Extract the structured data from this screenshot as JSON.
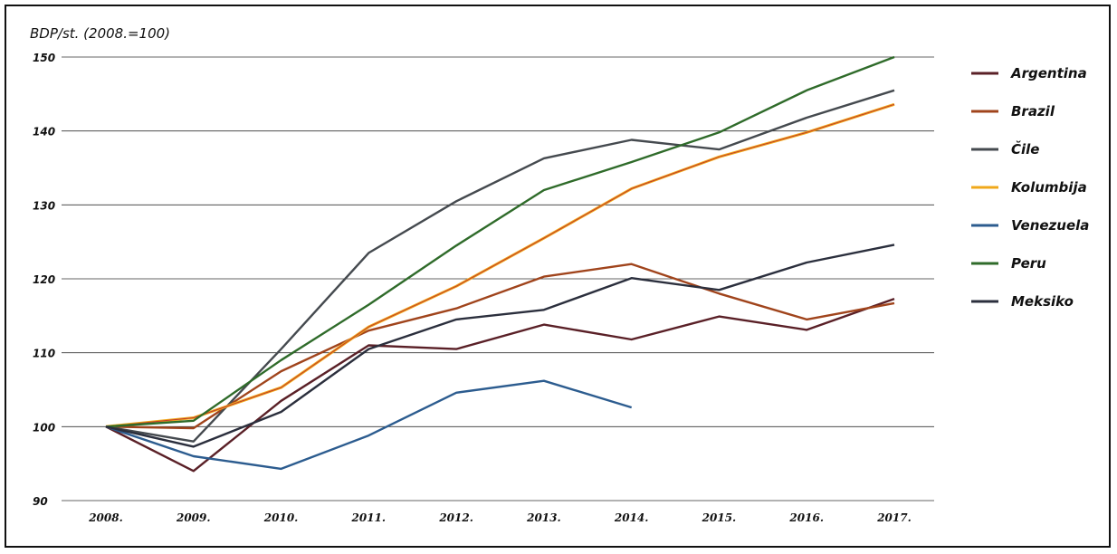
{
  "chart_data": {
    "type": "line",
    "ylabel": "BDP/st.  (2008.=100)",
    "ylim": [
      90,
      150
    ],
    "yticks": [
      "90",
      "100",
      "110",
      "120",
      "130",
      "140",
      "150"
    ],
    "x": [
      "2008.",
      "2009.",
      "2010.",
      "2011.",
      "2012.",
      "2013.",
      "2014.",
      "2015.",
      "2016.",
      "2017."
    ],
    "grid": true,
    "legend_position": "right",
    "series": [
      {
        "name": "Argentina",
        "color": "#5a2027",
        "values": [
          100,
          94,
          103.5,
          111,
          110.5,
          113.8,
          111.8,
          114.9,
          113.1,
          117.3
        ]
      },
      {
        "name": "Brazil",
        "color": "#a0441c",
        "values": [
          100,
          99.8,
          107.5,
          113,
          116,
          120.3,
          122,
          118,
          114.5,
          116.7
        ]
      },
      {
        "name": "Čile",
        "color": "#454a4f",
        "values": [
          100,
          98,
          110.5,
          123.5,
          130.5,
          136.3,
          138.8,
          137.5,
          141.8,
          145.5
        ]
      },
      {
        "name": "Kolumbija",
        "color": "#f0a81a",
        "values": [
          100,
          101.2,
          105.3,
          113.5,
          119,
          125.5,
          132.2,
          136.5,
          139.8,
          143.6
        ]
      },
      {
        "name": "Venezuela",
        "color": "#2c5c8f",
        "values": [
          100,
          96,
          94.3,
          98.8,
          104.6,
          106.2,
          102.6,
          null,
          null,
          null
        ]
      },
      {
        "name": "Peru",
        "color": "#2f6b2a",
        "values": [
          100,
          100.8,
          109,
          116.5,
          124.5,
          132,
          135.8,
          139.8,
          145.5,
          150
        ]
      },
      {
        "name": "Meksiko",
        "color": "#2b2f3d",
        "values": [
          100,
          97.3,
          102,
          110.5,
          114.5,
          115.8,
          120.1,
          118.5,
          122.2,
          124.6
        ]
      }
    ]
  }
}
